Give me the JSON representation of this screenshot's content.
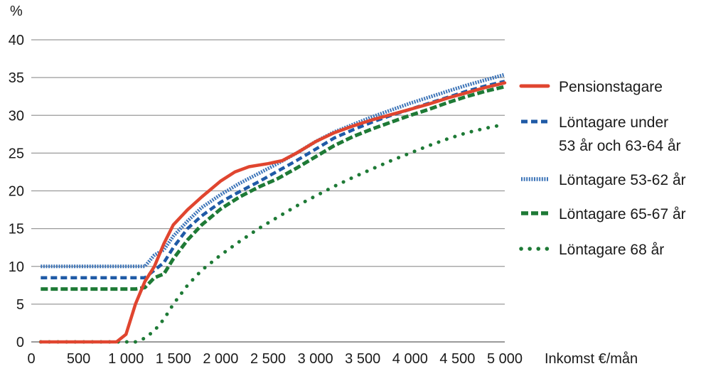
{
  "chart_data": {
    "type": "line",
    "ylabel": "%",
    "xlabel": "Inkomst €/mån",
    "xlim": [
      0,
      5000
    ],
    "ylim": [
      0,
      40
    ],
    "x_ticks": [
      0,
      500,
      1000,
      1500,
      2000,
      2500,
      3000,
      3500,
      4000,
      4500,
      5000
    ],
    "x_tick_labels": [
      "0",
      "500",
      "1 000",
      "1 500",
      "2 000",
      "2 500",
      "3 000",
      "3 500",
      "4 000",
      "4 500",
      "5 000"
    ],
    "y_ticks": [
      0,
      5,
      10,
      15,
      20,
      25,
      30,
      35,
      40
    ],
    "y_tick_labels": [
      "0",
      "5",
      "10",
      "15",
      "20",
      "25",
      "30",
      "35",
      "40"
    ],
    "grid": "horizontal",
    "legend_position": "right",
    "series": [
      {
        "name": "Pensionstagare",
        "legend_lines": [
          "Pensionstagare"
        ],
        "color": "#e0452f",
        "style": "solid",
        "points": [
          [
            100,
            0
          ],
          [
            900,
            0
          ],
          [
            1000,
            1
          ],
          [
            1100,
            5
          ],
          [
            1200,
            8
          ],
          [
            1300,
            10
          ],
          [
            1400,
            13
          ],
          [
            1500,
            15.5
          ],
          [
            1650,
            17.5
          ],
          [
            1800,
            19.2
          ],
          [
            2000,
            21.3
          ],
          [
            2150,
            22.5
          ],
          [
            2300,
            23.2
          ],
          [
            2500,
            23.6
          ],
          [
            2650,
            24
          ],
          [
            2800,
            25
          ],
          [
            3000,
            26.5
          ],
          [
            3200,
            27.7
          ],
          [
            3400,
            28.6
          ],
          [
            3600,
            29.4
          ],
          [
            3800,
            30.1
          ],
          [
            4000,
            30.8
          ],
          [
            4200,
            31.5
          ],
          [
            4400,
            32.3
          ],
          [
            4600,
            33
          ],
          [
            4800,
            33.7
          ],
          [
            5000,
            34.3
          ]
        ]
      },
      {
        "name": "Löntagare under 53 år och 63-64 år",
        "legend_lines": [
          "Löntagare under",
          "53 år och 63-64 år"
        ],
        "color": "#1f5aa6",
        "style": "dash",
        "points": [
          [
            100,
            8.5
          ],
          [
            1200,
            8.5
          ],
          [
            1300,
            9.5
          ],
          [
            1400,
            10.5
          ],
          [
            1500,
            12.5
          ],
          [
            1650,
            15
          ],
          [
            1800,
            16.7
          ],
          [
            2000,
            18.5
          ],
          [
            2200,
            19.9
          ],
          [
            2400,
            21.2
          ],
          [
            2600,
            22.6
          ],
          [
            2800,
            24
          ],
          [
            3000,
            25.5
          ],
          [
            3200,
            27
          ],
          [
            3400,
            28.1
          ],
          [
            3600,
            29.1
          ],
          [
            3800,
            30
          ],
          [
            4000,
            30.8
          ],
          [
            4200,
            31.6
          ],
          [
            4400,
            32.4
          ],
          [
            4600,
            33.2
          ],
          [
            4800,
            33.9
          ],
          [
            5000,
            34.5
          ]
        ]
      },
      {
        "name": "Löntagare 53-62 år",
        "legend_lines": [
          "Löntagare 53-62 år"
        ],
        "color": "#3c74b8",
        "style": "dotted-dense",
        "points": [
          [
            100,
            10
          ],
          [
            1200,
            10
          ],
          [
            1300,
            11.5
          ],
          [
            1400,
            12.2
          ],
          [
            1500,
            14
          ],
          [
            1650,
            16
          ],
          [
            1800,
            17.8
          ],
          [
            2000,
            19.5
          ],
          [
            2200,
            21
          ],
          [
            2400,
            22.3
          ],
          [
            2600,
            23.6
          ],
          [
            2800,
            25
          ],
          [
            3000,
            26.5
          ],
          [
            3200,
            27.8
          ],
          [
            3400,
            28.8
          ],
          [
            3600,
            29.8
          ],
          [
            3800,
            30.7
          ],
          [
            4000,
            31.6
          ],
          [
            4200,
            32.4
          ],
          [
            4400,
            33.2
          ],
          [
            4600,
            34
          ],
          [
            4800,
            34.7
          ],
          [
            5000,
            35.4
          ]
        ]
      },
      {
        "name": "Löntagare 65-67 år",
        "legend_lines": [
          "Löntagare 65-67 år"
        ],
        "color": "#1e7a36",
        "style": "dash-thick",
        "points": [
          [
            100,
            7
          ],
          [
            1100,
            7
          ],
          [
            1200,
            7.2
          ],
          [
            1300,
            8.5
          ],
          [
            1400,
            9
          ],
          [
            1500,
            11
          ],
          [
            1650,
            13.5
          ],
          [
            1800,
            15.5
          ],
          [
            2000,
            17.6
          ],
          [
            2200,
            19.2
          ],
          [
            2400,
            20.5
          ],
          [
            2600,
            21.6
          ],
          [
            2800,
            23
          ],
          [
            3000,
            24.5
          ],
          [
            3200,
            26
          ],
          [
            3400,
            27.2
          ],
          [
            3600,
            28.2
          ],
          [
            3800,
            29.1
          ],
          [
            4000,
            30
          ],
          [
            4200,
            30.8
          ],
          [
            4400,
            31.7
          ],
          [
            4600,
            32.5
          ],
          [
            4800,
            33.2
          ],
          [
            5000,
            33.8
          ]
        ]
      },
      {
        "name": "Löntagare 68 år",
        "legend_lines": [
          "Löntagare 68 år"
        ],
        "color": "#1e7a36",
        "style": "dotted-round",
        "points": [
          [
            100,
            0
          ],
          [
            1100,
            0
          ],
          [
            1200,
            0.5
          ],
          [
            1300,
            1.5
          ],
          [
            1400,
            3
          ],
          [
            1500,
            5
          ],
          [
            1650,
            7.5
          ],
          [
            1800,
            9.5
          ],
          [
            2000,
            11.5
          ],
          [
            2200,
            13.3
          ],
          [
            2400,
            15
          ],
          [
            2600,
            16.5
          ],
          [
            2800,
            18
          ],
          [
            3000,
            19.3
          ],
          [
            3200,
            20.6
          ],
          [
            3400,
            21.8
          ],
          [
            3600,
            22.9
          ],
          [
            3800,
            24
          ],
          [
            4000,
            25
          ],
          [
            4200,
            26
          ],
          [
            4400,
            26.9
          ],
          [
            4600,
            27.7
          ],
          [
            4800,
            28.3
          ],
          [
            5000,
            28.8
          ]
        ]
      }
    ]
  }
}
